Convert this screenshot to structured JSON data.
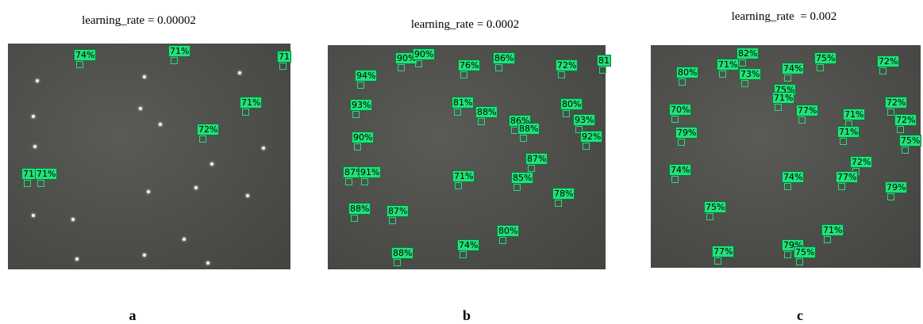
{
  "panels": [
    {
      "title": "learning_rate = 0.00002",
      "letter": "a",
      "detections": [
        "74%",
        "71%",
        "71",
        "71%",
        "72%",
        "71",
        "71%"
      ]
    },
    {
      "title": "learning_rate = 0.0002",
      "letter": "b",
      "detections": [
        "90%",
        "90%",
        "86%",
        "76%",
        "72%",
        "81",
        "94%",
        "81%",
        "88%",
        "80%",
        "93%",
        "86%",
        "88%",
        "93%",
        "90%",
        "92%",
        "87%",
        "87%",
        "91%",
        "71%",
        "85%",
        "78%",
        "88%",
        "87%",
        "80%",
        "74%",
        "88%"
      ]
    },
    {
      "title": "learning_rate  = 0.002",
      "letter": "c",
      "detections": [
        "82%",
        "75%",
        "71%",
        "73%",
        "74%",
        "72%",
        "80%",
        "75%",
        "71%",
        "77%",
        "70%",
        "71%",
        "72%",
        "72%",
        "71%",
        "79%",
        "75%",
        "72%",
        "74%",
        "74%",
        "77%",
        "79%",
        "75%",
        "71%",
        "79%",
        "75%",
        "77%"
      ]
    }
  ]
}
